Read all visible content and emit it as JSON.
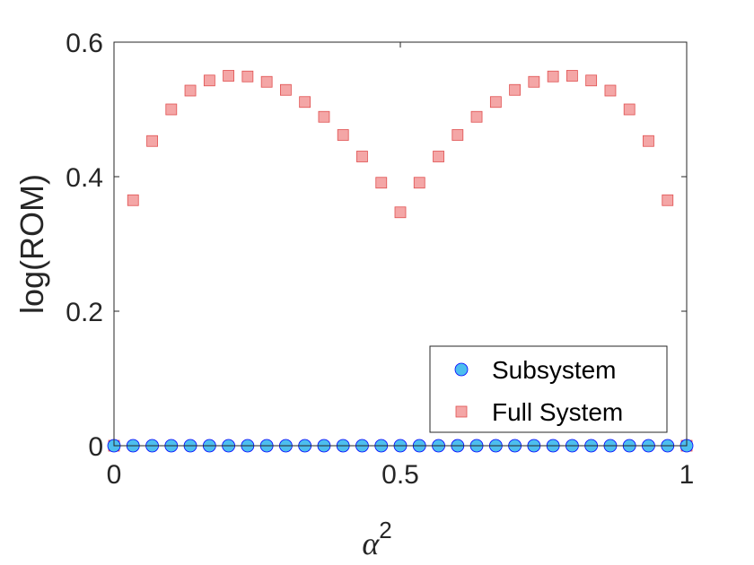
{
  "chart_data": {
    "type": "scatter",
    "xlabel": "α",
    "xlabel_superscript": "2",
    "ylabel": "log(ROM)",
    "xlim": [
      0,
      1
    ],
    "ylim": [
      0,
      0.6
    ],
    "xticks": [
      0,
      0.5,
      1
    ],
    "xtick_labels": [
      "0",
      "0.5",
      "1"
    ],
    "yticks": [
      0,
      0.2,
      0.4,
      0.6
    ],
    "ytick_labels": [
      "0",
      "0.2",
      "0.4",
      "0.6"
    ],
    "grid": false,
    "legend_position": "bottom-right",
    "series": [
      {
        "name": "Subsystem",
        "marker": "circle",
        "color": "#4DBEEE",
        "edge_color": "#0000FF",
        "x": [
          0,
          0.0333,
          0.0667,
          0.1,
          0.1333,
          0.1667,
          0.2,
          0.2333,
          0.2667,
          0.3,
          0.3333,
          0.3667,
          0.4,
          0.4333,
          0.4667,
          0.5,
          0.5333,
          0.5667,
          0.6,
          0.6333,
          0.6667,
          0.7,
          0.7333,
          0.7667,
          0.8,
          0.8333,
          0.8667,
          0.9,
          0.9333,
          0.9667,
          1
        ],
        "y": [
          0,
          0,
          0,
          0,
          0,
          0,
          0,
          0,
          0,
          0,
          0,
          0,
          0,
          0,
          0,
          0,
          0,
          0,
          0,
          0,
          0,
          0,
          0,
          0,
          0,
          0,
          0,
          0,
          0,
          0,
          0
        ]
      },
      {
        "name": "Full System",
        "marker": "square",
        "color": "#F4A6A6",
        "edge_color": "#E05050",
        "x": [
          0,
          0.0333,
          0.0667,
          0.1,
          0.1333,
          0.1667,
          0.2,
          0.2333,
          0.2667,
          0.3,
          0.3333,
          0.3667,
          0.4,
          0.4333,
          0.4667,
          0.5,
          0.5333,
          0.5667,
          0.6,
          0.6333,
          0.6667,
          0.7,
          0.7333,
          0.7667,
          0.8,
          0.8333,
          0.8667,
          0.9,
          0.9333,
          0.9667,
          1
        ],
        "y": [
          0,
          0.365,
          0.453,
          0.5,
          0.528,
          0.543,
          0.55,
          0.549,
          0.541,
          0.529,
          0.511,
          0.489,
          0.462,
          0.43,
          0.391,
          0.347,
          0.391,
          0.43,
          0.462,
          0.489,
          0.511,
          0.529,
          0.541,
          0.549,
          0.55,
          0.543,
          0.528,
          0.5,
          0.453,
          0.365,
          0
        ]
      }
    ]
  }
}
